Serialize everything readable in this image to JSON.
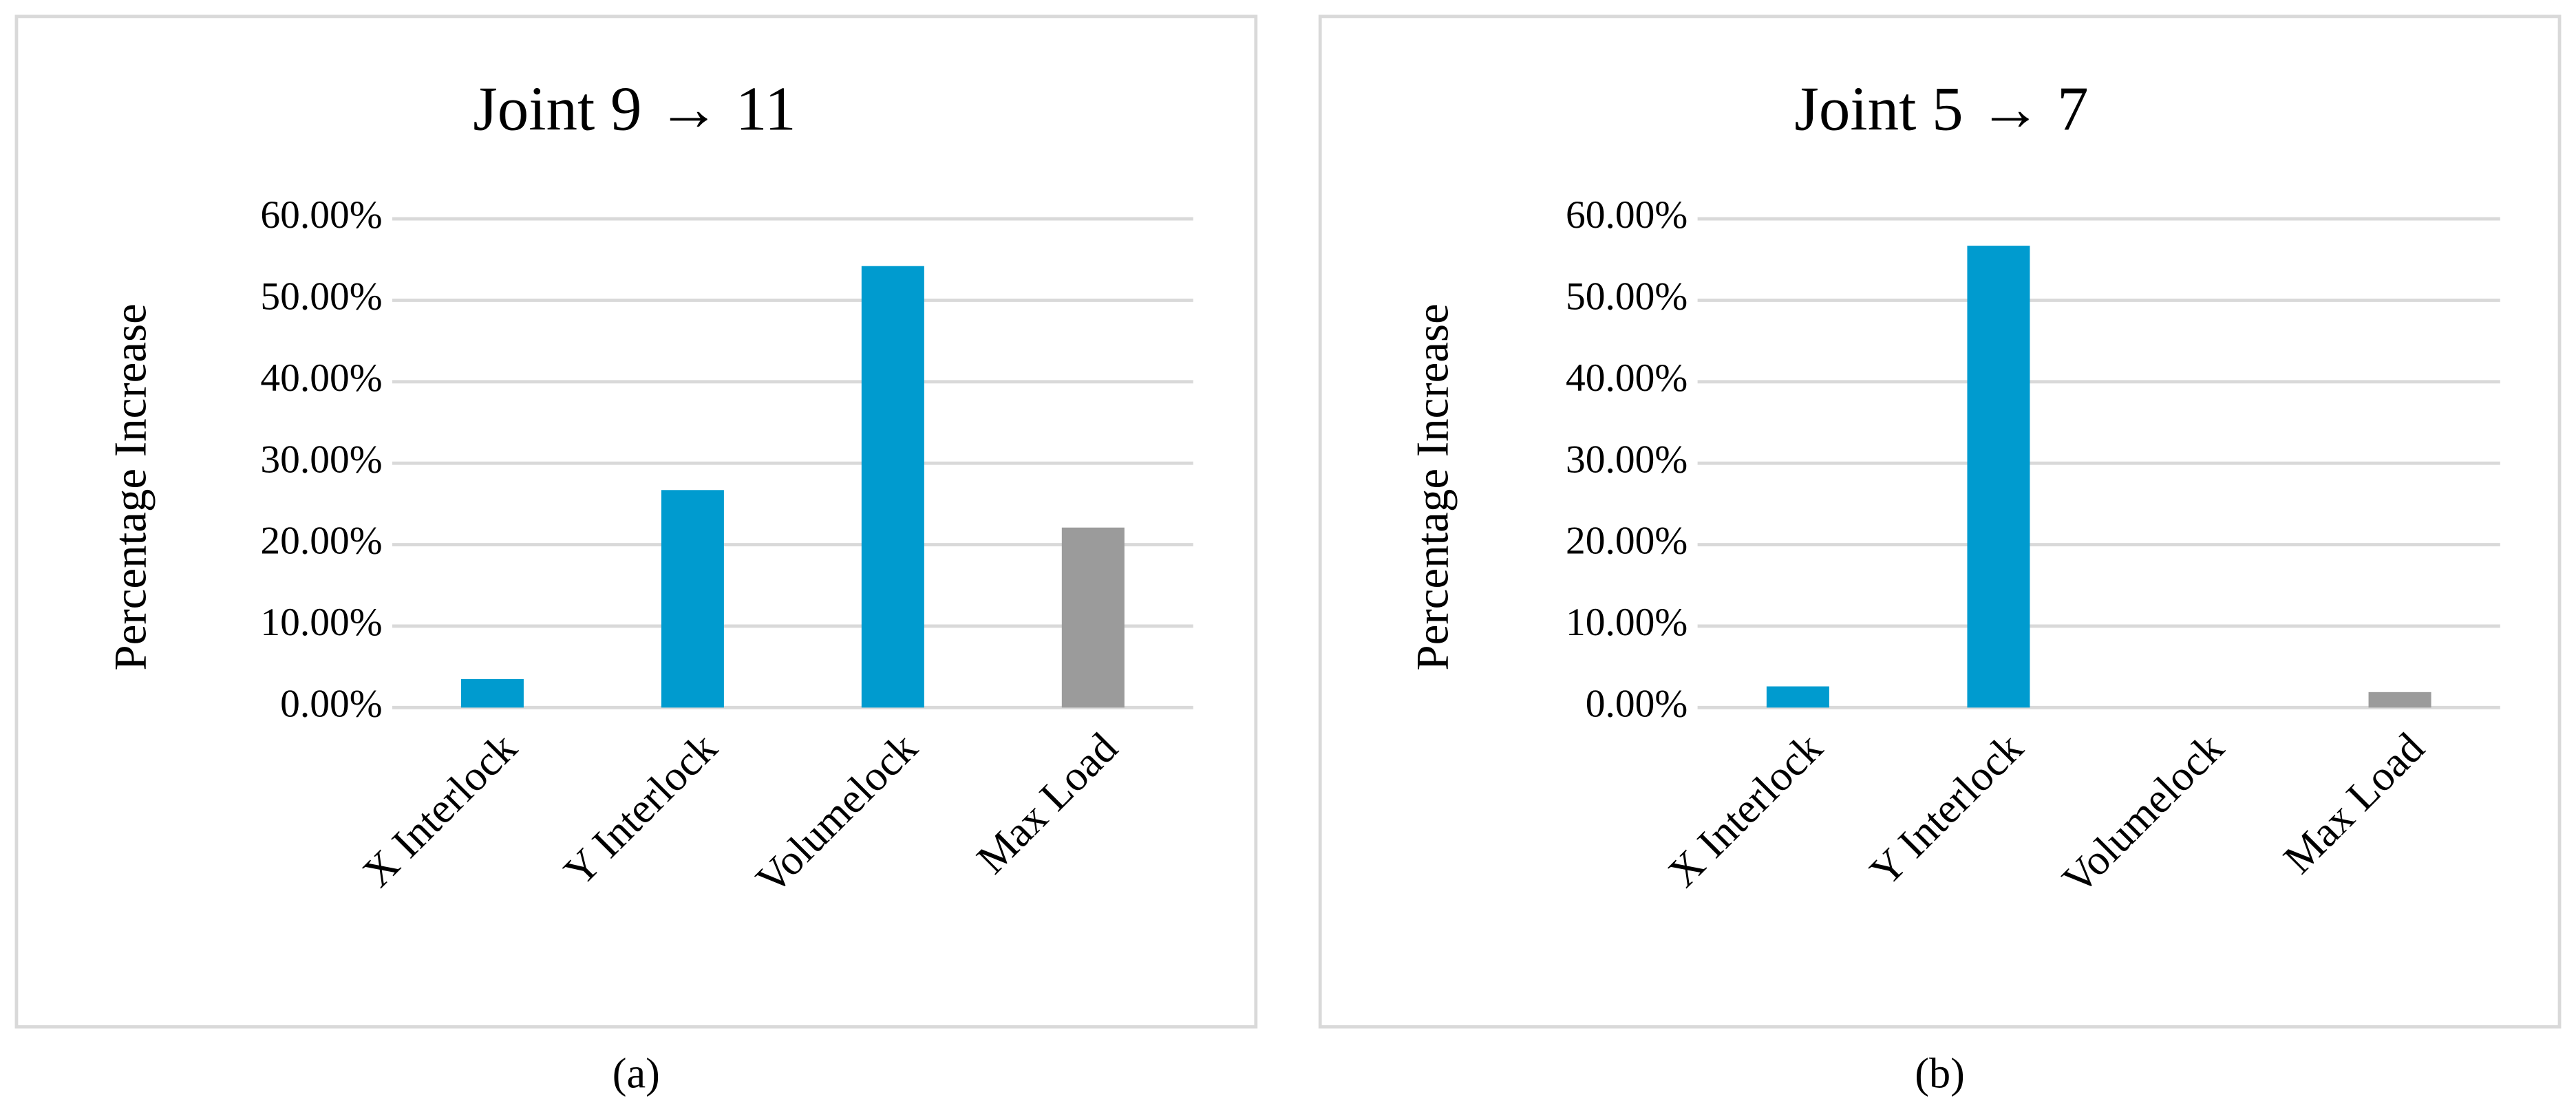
{
  "chart_data": [
    {
      "type": "bar",
      "title": "Joint 9 → 11",
      "y_label": "Percentage Increase",
      "panel_label": "(a)",
      "categories": [
        "X Interlock",
        "Y Interlock",
        "Volumelock",
        "Max Load"
      ],
      "values": [
        3.5,
        26.7,
        54.2,
        22.1
      ],
      "colors": [
        "#009bcf",
        "#009bcf",
        "#009bcf",
        "#9b9b9b"
      ],
      "ylim": [
        0,
        60
      ],
      "yticks": [
        {
          "value": 0,
          "label": "0.00%"
        },
        {
          "value": 10,
          "label": "10.00%"
        },
        {
          "value": 20,
          "label": "20.00%"
        },
        {
          "value": 30,
          "label": "30.00%"
        },
        {
          "value": 40,
          "label": "40.00%"
        },
        {
          "value": 50,
          "label": "50.00%"
        },
        {
          "value": 60,
          "label": "60.00%"
        }
      ],
      "grid": true
    },
    {
      "type": "bar",
      "title": "Joint 5 → 7",
      "y_label": "Percentage Increase",
      "panel_label": "(b)",
      "categories": [
        "X Interlock",
        "Y Interlock",
        "Volumelock",
        "Max Load"
      ],
      "values": [
        2.6,
        56.7,
        0,
        1.9
      ],
      "colors": [
        "#009bcf",
        "#009bcf",
        "#009bcf",
        "#9b9b9b"
      ],
      "ylim": [
        0,
        60
      ],
      "yticks": [
        {
          "value": 0,
          "label": "0.00%"
        },
        {
          "value": 10,
          "label": "10.00%"
        },
        {
          "value": 20,
          "label": "20.00%"
        },
        {
          "value": 30,
          "label": "30.00%"
        },
        {
          "value": 40,
          "label": "40.00%"
        },
        {
          "value": 50,
          "label": "50.00%"
        },
        {
          "value": 60,
          "label": "60.00%"
        }
      ],
      "grid": true
    }
  ]
}
